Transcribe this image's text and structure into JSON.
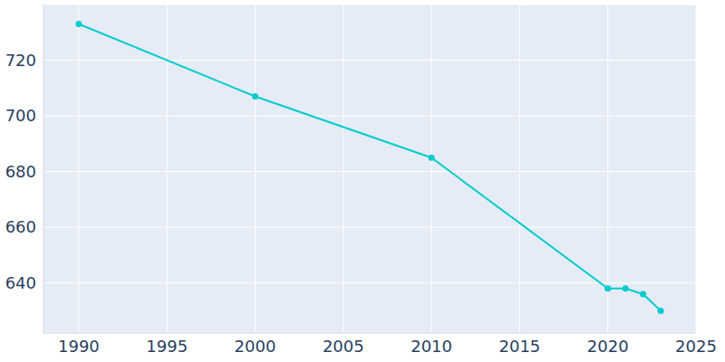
{
  "chart_data": {
    "type": "line",
    "x": [
      1990,
      2000,
      2010,
      2020,
      2021,
      2022,
      2023
    ],
    "values": [
      733,
      707,
      685,
      638,
      638,
      636,
      630
    ],
    "color": "#00cccc",
    "xlim": [
      1988,
      2025
    ],
    "xticks": [
      1990,
      1995,
      2000,
      2005,
      2010,
      2015,
      2020,
      2025
    ],
    "ylim": [
      622,
      740
    ],
    "yticks": [
      640,
      660,
      680,
      700,
      720
    ],
    "grid": true,
    "marker": "circle"
  }
}
